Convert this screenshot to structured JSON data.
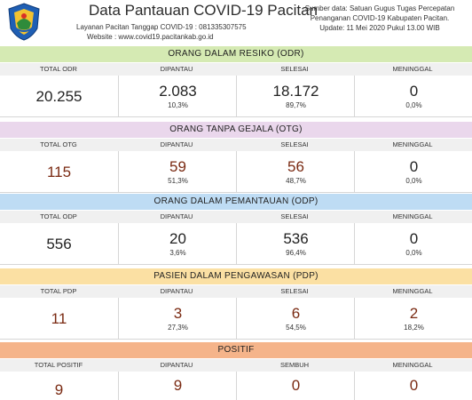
{
  "header": {
    "title": "Data Pantauan COVID-19 Pacitan",
    "hotline": "Layanan Pacitan Tanggap COVID-19 : 081335307575",
    "website": "Website : www.covid19.pacitankab.go.id",
    "source_lines": [
      "Sumber data: Satuan Gugus Tugas Percepatan",
      "Penanganan COVID-19  Kabupaten Pacitan.",
      "Update: 11 Mei 2020 Pukul 13.00 WIB"
    ]
  },
  "colors": {
    "odr": "#d5eab3",
    "otg": "#ead7ec",
    "odp": "#bedcf4",
    "pdp": "#fbe0a3",
    "positif": "#f5b48a",
    "number_brown": "#7a2a12"
  },
  "sections": [
    {
      "title": "ORANG DALAM RESIKO (ODR)",
      "columns": [
        "TOTAL ODR",
        "DIPANTAU",
        "SELESAI",
        "MENINGGAL"
      ],
      "values": [
        "20.255",
        "2.083",
        "18.172",
        "0"
      ],
      "percents": [
        "",
        "10,3%",
        "89,7%",
        "0,0%"
      ]
    },
    {
      "title": "ORANG TANPA GEJALA (OTG)",
      "columns": [
        "TOTAL OTG",
        "DIPANTAU",
        "SELESAI",
        "MENINGGAL"
      ],
      "values": [
        "115",
        "59",
        "56",
        "0"
      ],
      "percents": [
        "",
        "51,3%",
        "48,7%",
        "0,0%"
      ]
    },
    {
      "title": "ORANG DALAM PEMANTAUAN (ODP)",
      "columns": [
        "TOTAL ODP",
        "DIPANTAU",
        "SELESAI",
        "MENINGGAL"
      ],
      "values": [
        "556",
        "20",
        "536",
        "0"
      ],
      "percents": [
        "",
        "3,6%",
        "96,4%",
        "0,0%"
      ]
    },
    {
      "title": "PASIEN DALAM PENGAWASAN (PDP)",
      "columns": [
        "TOTAL PDP",
        "DIPANTAU",
        "SELESAI",
        "MENINGGAL"
      ],
      "values": [
        "11",
        "3",
        "6",
        "2"
      ],
      "percents": [
        "",
        "27,3%",
        "54,5%",
        "18,2%"
      ]
    },
    {
      "title": "POSITIF",
      "columns": [
        "TOTAL POSITIF",
        "DIPANTAU",
        "SEMBUH",
        "MENINGGAL"
      ],
      "values": [
        "9",
        "9",
        "0",
        "0"
      ],
      "percents": [
        "",
        "",
        "",
        ""
      ]
    }
  ]
}
